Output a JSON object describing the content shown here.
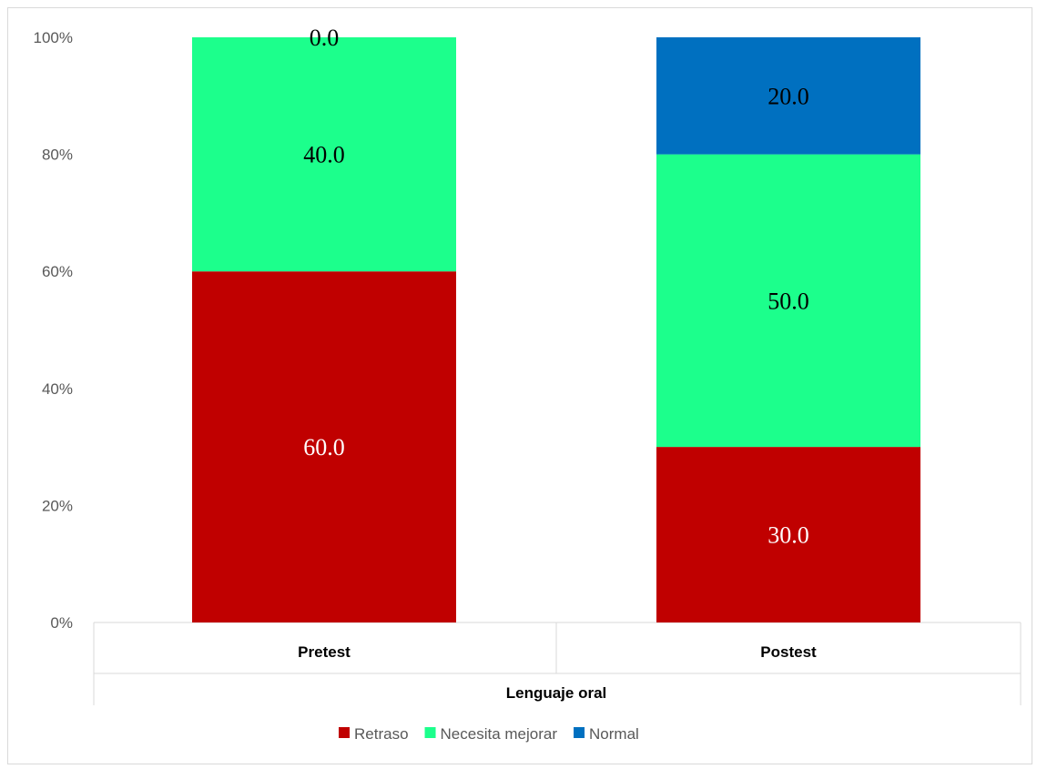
{
  "chart_data": {
    "type": "bar",
    "stacked": true,
    "percent_stacked": true,
    "categories": [
      "Pretest",
      "Postest"
    ],
    "xlabel": "Lenguaje oral",
    "ylabel": "",
    "ylim": [
      0,
      100
    ],
    "y_ticks": [
      "0%",
      "20%",
      "40%",
      "60%",
      "80%",
      "100%"
    ],
    "grid": false,
    "legend_position": "bottom",
    "series": [
      {
        "name": "Retraso",
        "color": "#c00000",
        "label_color": "#ffffff",
        "values": [
          60.0,
          30.0
        ],
        "labels": [
          "60.0",
          "30.0"
        ]
      },
      {
        "name": "Necesita mejorar",
        "color": "#1cff8c",
        "label_color": "#000000",
        "values": [
          40.0,
          50.0
        ],
        "labels": [
          "40.0",
          "50.0"
        ]
      },
      {
        "name": "Normal",
        "color": "#0070c0",
        "label_color": "#000000",
        "values": [
          0.0,
          20.0
        ],
        "labels": [
          "0.0",
          "20.0"
        ]
      }
    ]
  }
}
